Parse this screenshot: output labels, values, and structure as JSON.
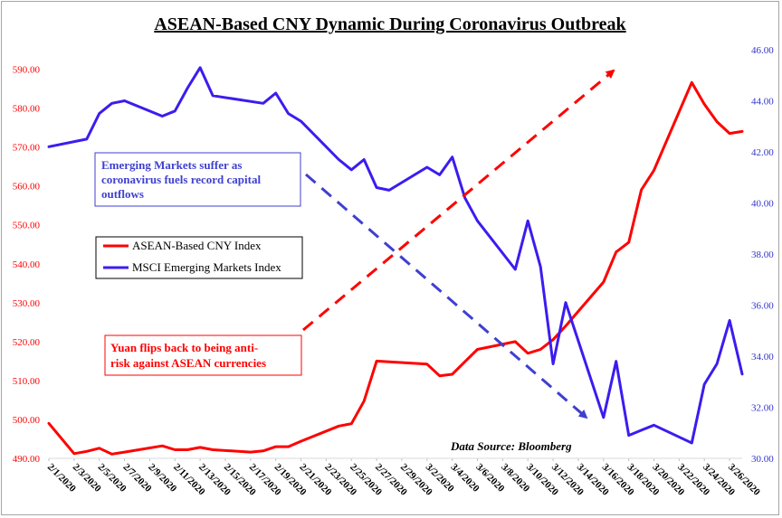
{
  "chart_data": {
    "type": "line",
    "title": "ASEAN-Based CNY Dynamic During Coronavirus Outbreak",
    "x_tick_labels": [
      "2/1/2020",
      "2/3/2020",
      "2/5/2020",
      "2/7/2020",
      "2/9/2020",
      "2/11/2020",
      "2/13/2020",
      "2/15/2020",
      "2/17/2020",
      "2/19/2020",
      "2/21/2020",
      "2/23/2020",
      "2/25/2020",
      "2/27/2020",
      "2/29/2020",
      "3/2/2020",
      "3/4/2020",
      "3/6/2020",
      "3/8/2020",
      "3/10/2020",
      "3/12/2020",
      "3/14/2020",
      "3/16/2020",
      "3/18/2020",
      "3/20/2020",
      "3/22/2020",
      "3/24/2020",
      "3/26/2020"
    ],
    "xlim": [
      "2020-02-01",
      "2020-03-27"
    ],
    "y_left": {
      "ylim": [
        490,
        595
      ],
      "ticks": [
        "490.00",
        "500.00",
        "510.00",
        "520.00",
        "530.00",
        "540.00",
        "550.00",
        "560.00",
        "570.00",
        "580.00",
        "590.00"
      ]
    },
    "y_right": {
      "ylim": [
        30,
        46
      ],
      "ticks": [
        "30.00",
        "32.00",
        "34.00",
        "36.00",
        "38.00",
        "40.00",
        "42.00",
        "44.00",
        "46.00"
      ]
    },
    "series": [
      {
        "name": "ASEAN-Based CNY Index",
        "axis": "left",
        "color": "#ff0000",
        "x": [
          "2020-02-01",
          "2020-02-03",
          "2020-02-04",
          "2020-02-05",
          "2020-02-06",
          "2020-02-07",
          "2020-02-10",
          "2020-02-11",
          "2020-02-12",
          "2020-02-13",
          "2020-02-14",
          "2020-02-17",
          "2020-02-18",
          "2020-02-19",
          "2020-02-20",
          "2020-02-21",
          "2020-02-24",
          "2020-02-25",
          "2020-02-26",
          "2020-02-27",
          "2020-02-28",
          "2020-03-02",
          "2020-03-03",
          "2020-03-04",
          "2020-03-05",
          "2020-03-06",
          "2020-03-09",
          "2020-03-10",
          "2020-03-11",
          "2020-03-12",
          "2020-03-13",
          "2020-03-16",
          "2020-03-17",
          "2020-03-18",
          "2020-03-19",
          "2020-03-20",
          "2020-03-23",
          "2020-03-24",
          "2020-03-25",
          "2020-03-26",
          "2020-03-27"
        ],
        "values": [
          499,
          491.2,
          491.8,
          492.6,
          491.1,
          491.6,
          493.2,
          492.2,
          492.2,
          492.8,
          492.2,
          491.6,
          491.9,
          493.0,
          493.0,
          494.4,
          498.3,
          498.9,
          504.7,
          515.0,
          514.8,
          514.2,
          511.2,
          511.6,
          514.8,
          518.0,
          520.0,
          517.0,
          518.0,
          520.5,
          524.0,
          535.3,
          543.0,
          545.5,
          559.0,
          564.0,
          586.6,
          581.0,
          576.5,
          573.5,
          574.0
        ]
      },
      {
        "name": "MSCI Emerging Markets Index",
        "axis": "right",
        "color": "#3b1cf0",
        "x": [
          "2020-02-01",
          "2020-02-04",
          "2020-02-05",
          "2020-02-06",
          "2020-02-07",
          "2020-02-10",
          "2020-02-11",
          "2020-02-12",
          "2020-02-13",
          "2020-02-14",
          "2020-02-18",
          "2020-02-19",
          "2020-02-20",
          "2020-02-21",
          "2020-02-24",
          "2020-02-25",
          "2020-02-26",
          "2020-02-27",
          "2020-02-28",
          "2020-03-02",
          "2020-03-03",
          "2020-03-04",
          "2020-03-05",
          "2020-03-06",
          "2020-03-09",
          "2020-03-10",
          "2020-03-11",
          "2020-03-12",
          "2020-03-13",
          "2020-03-16",
          "2020-03-17",
          "2020-03-18",
          "2020-03-19",
          "2020-03-20",
          "2020-03-23",
          "2020-03-24",
          "2020-03-25",
          "2020-03-26",
          "2020-03-27"
        ],
        "values": [
          42.2,
          42.5,
          43.5,
          43.9,
          44.0,
          43.4,
          43.6,
          44.5,
          45.3,
          44.2,
          43.9,
          44.3,
          43.5,
          43.2,
          41.7,
          41.3,
          41.7,
          40.6,
          40.5,
          41.4,
          41.1,
          41.8,
          40.2,
          39.3,
          37.4,
          39.3,
          37.5,
          33.7,
          36.1,
          31.6,
          33.8,
          30.9,
          31.1,
          31.3,
          30.6,
          32.9,
          33.7,
          35.4,
          33.3
        ]
      }
    ],
    "legend": {
      "placement": "left",
      "entries": [
        "ASEAN-Based CNY Index",
        "MSCI Emerging Markets Index"
      ]
    },
    "annotations": {
      "blue_box": [
        "Emerging Markets suffer as",
        "coronavirus fuels record capital",
        "outflows"
      ],
      "red_box": [
        "Yuan flips back to being anti-",
        "risk against ASEAN currencies"
      ],
      "source": "Data Source: Bloomberg"
    },
    "grid": false
  }
}
